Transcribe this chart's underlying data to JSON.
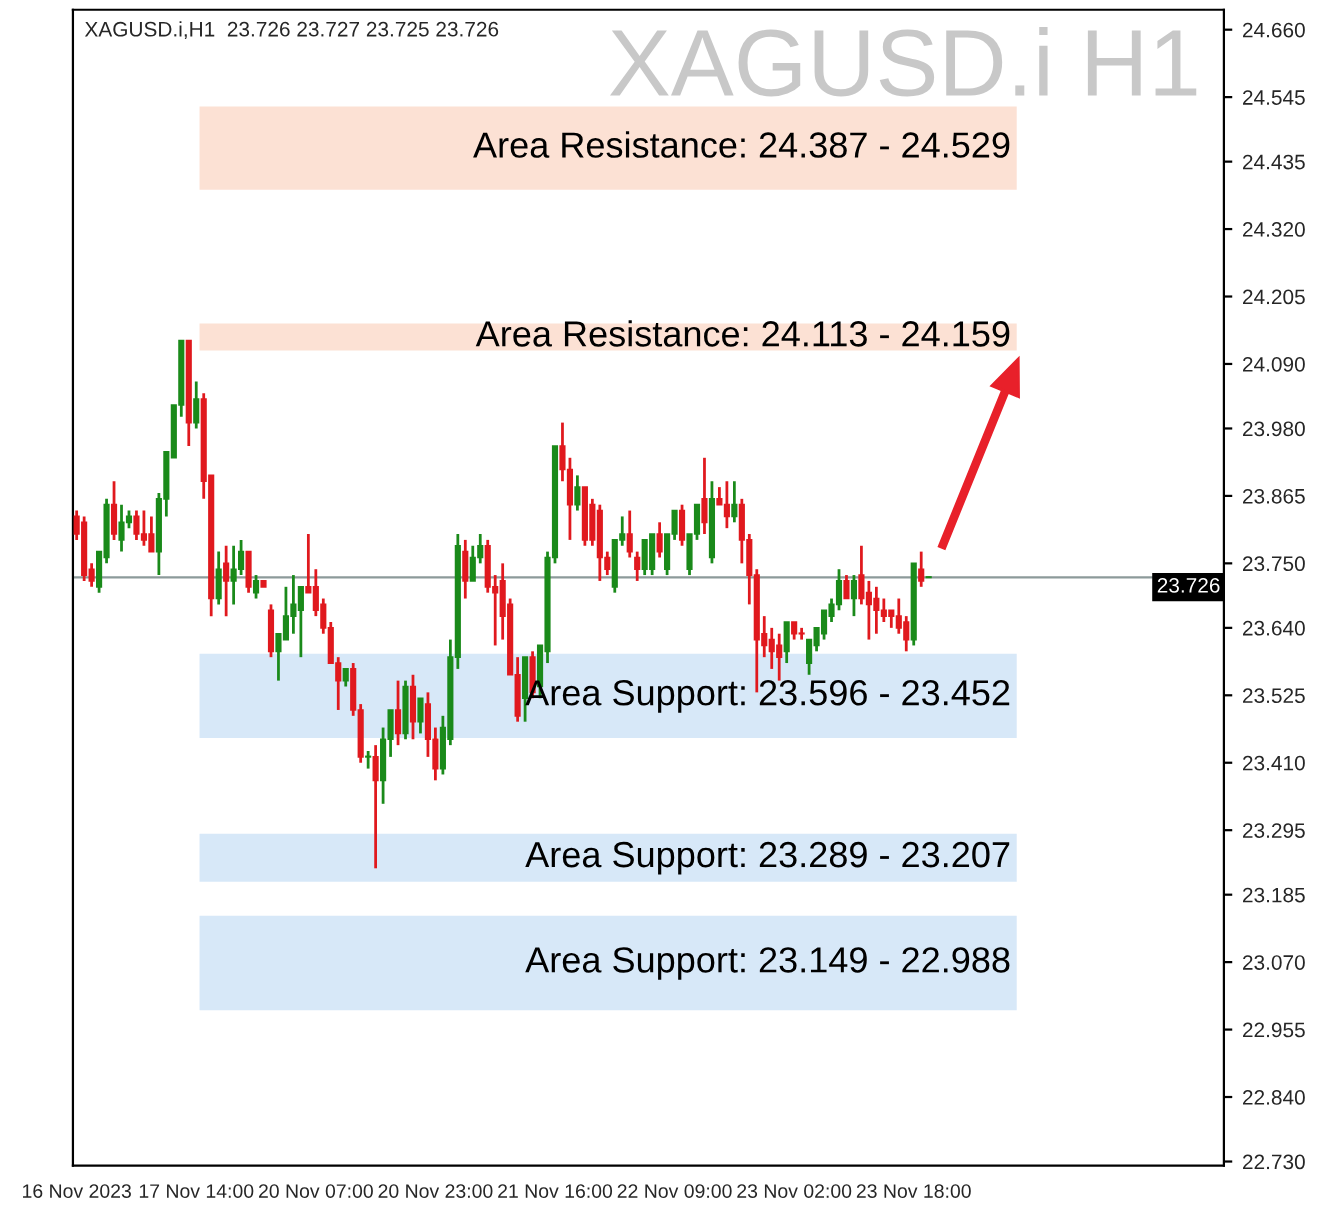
{
  "chart_data": {
    "type": "candlestick",
    "title": "XAGUSD.i H1",
    "annotations": [
      "XAGUSD.i,H1  23.726 23.727 23.725 23.726"
    ],
    "categories": [
      "16 Nov 2023",
      null,
      null,
      null,
      null,
      null,
      null,
      null,
      null,
      null,
      null,
      null,
      null,
      null,
      null,
      null,
      "17 Nov 14:00",
      null,
      null,
      null,
      null,
      null,
      null,
      null,
      null,
      null,
      null,
      null,
      null,
      null,
      null,
      null,
      "20 Nov 07:00",
      null,
      null,
      null,
      null,
      null,
      null,
      null,
      null,
      null,
      null,
      null,
      null,
      null,
      null,
      null,
      "20 Nov 23:00",
      null,
      null,
      null,
      null,
      null,
      null,
      null,
      null,
      null,
      null,
      null,
      null,
      null,
      null,
      null,
      "21 Nov 16:00",
      null,
      null,
      null,
      null,
      null,
      null,
      null,
      null,
      null,
      null,
      null,
      null,
      null,
      null,
      null,
      "22 Nov 09:00",
      null,
      null,
      null,
      null,
      null,
      null,
      null,
      null,
      null,
      null,
      null,
      null,
      null,
      null,
      null,
      "23 Nov 02:00",
      null,
      null,
      null,
      null,
      null,
      null,
      null,
      null,
      null,
      null,
      null,
      null,
      null,
      null,
      null,
      "23 Nov 18:00",
      null,
      null,
      null,
      null,
      null,
      null,
      null,
      null,
      null,
      null,
      null,
      null,
      null,
      null,
      null,
      null,
      null,
      null,
      null,
      null,
      null,
      null,
      null,
      null,
      null,
      null,
      null,
      null,
      null,
      null,
      null,
      null,
      null,
      null,
      null,
      null,
      null,
      null,
      null,
      null,
      null
    ],
    "ohlc": [
      [
        23.83,
        23.84,
        23.79,
        23.8
      ],
      [
        23.82,
        23.83,
        23.72,
        23.73
      ],
      [
        23.74,
        23.75,
        23.71,
        23.72
      ],
      [
        23.71,
        23.77,
        23.7,
        23.77
      ],
      [
        23.76,
        23.86,
        23.75,
        23.85
      ],
      [
        23.85,
        23.89,
        23.79,
        23.8
      ],
      [
        23.79,
        23.85,
        23.77,
        23.82
      ],
      [
        23.82,
        23.84,
        23.81,
        23.83
      ],
      [
        23.83,
        23.84,
        23.79,
        23.8
      ],
      [
        23.8,
        23.84,
        23.78,
        23.79
      ],
      [
        23.8,
        23.83,
        23.77,
        23.77
      ],
      [
        23.77,
        23.87,
        23.73,
        23.86
      ],
      [
        23.86,
        23.94,
        23.83,
        23.94
      ],
      [
        23.93,
        24.02,
        23.93,
        24.02
      ],
      [
        24.02,
        24.13,
        24.0,
        24.13
      ],
      [
        24.13,
        24.13,
        23.95,
        23.99
      ],
      [
        23.99,
        24.06,
        23.98,
        24.03
      ],
      [
        24.03,
        24.04,
        23.86,
        23.89
      ],
      [
        23.9,
        23.9,
        23.66,
        23.69
      ],
      [
        23.69,
        23.77,
        23.68,
        23.74
      ],
      [
        23.75,
        23.78,
        23.66,
        23.72
      ],
      [
        23.72,
        23.78,
        23.68,
        23.74
      ],
      [
        23.74,
        23.79,
        23.73,
        23.77
      ],
      [
        23.77,
        23.77,
        23.7,
        23.71
      ],
      [
        23.7,
        23.73,
        23.69,
        23.72
      ],
      [
        23.72,
        23.72,
        23.71,
        23.71
      ],
      [
        23.67,
        23.68,
        23.59,
        23.6
      ],
      [
        23.6,
        23.63,
        23.55,
        23.63
      ],
      [
        23.62,
        23.71,
        23.62,
        23.66
      ],
      [
        23.66,
        23.73,
        23.63,
        23.68
      ],
      [
        23.67,
        23.71,
        23.59,
        23.71
      ],
      [
        23.71,
        23.8,
        23.7,
        23.7
      ],
      [
        23.71,
        23.74,
        23.66,
        23.67
      ],
      [
        23.68,
        23.69,
        23.63,
        23.64
      ],
      [
        23.64,
        23.65,
        23.58,
        23.58
      ],
      [
        23.58,
        23.59,
        23.5,
        23.55
      ],
      [
        23.55,
        23.57,
        23.54,
        23.57
      ],
      [
        23.57,
        23.58,
        23.49,
        23.5
      ],
      [
        23.5,
        23.51,
        23.41,
        23.42
      ],
      [
        23.42,
        23.43,
        23.4,
        23.42
      ],
      [
        23.42,
        23.44,
        23.23,
        23.38
      ],
      [
        23.38,
        23.47,
        23.34,
        23.45
      ],
      [
        23.45,
        23.5,
        23.42,
        23.5
      ],
      [
        23.5,
        23.55,
        23.44,
        23.46
      ],
      [
        23.46,
        23.55,
        23.45,
        23.54
      ],
      [
        23.54,
        23.56,
        23.45,
        23.48
      ],
      [
        23.48,
        23.52,
        23.46,
        23.52
      ],
      [
        23.51,
        23.53,
        23.42,
        23.45
      ],
      [
        23.45,
        23.47,
        23.38,
        23.4
      ],
      [
        23.4,
        23.49,
        23.39,
        23.47
      ],
      [
        23.45,
        23.62,
        23.44,
        23.59
      ],
      [
        23.59,
        23.8,
        23.57,
        23.78
      ],
      [
        23.77,
        23.79,
        23.69,
        23.72
      ],
      [
        23.72,
        23.78,
        23.72,
        23.76
      ],
      [
        23.76,
        23.8,
        23.75,
        23.78
      ],
      [
        23.78,
        23.79,
        23.7,
        23.71
      ],
      [
        23.71,
        23.73,
        23.61,
        23.7
      ],
      [
        23.72,
        23.75,
        23.62,
        23.66
      ],
      [
        23.68,
        23.69,
        23.56,
        23.56
      ],
      [
        23.56,
        23.59,
        23.48,
        23.49
      ],
      [
        23.52,
        23.59,
        23.48,
        23.59
      ],
      [
        23.59,
        23.6,
        23.52,
        23.53
      ],
      [
        23.54,
        23.61,
        23.52,
        23.61
      ],
      [
        23.6,
        23.77,
        23.58,
        23.76
      ],
      [
        23.76,
        23.95,
        23.75,
        23.95
      ],
      [
        23.95,
        23.99,
        23.89,
        23.91
      ],
      [
        23.91,
        23.93,
        23.79,
        23.85
      ],
      [
        23.85,
        23.9,
        23.84,
        23.88
      ],
      [
        23.88,
        23.88,
        23.78,
        23.79
      ],
      [
        23.85,
        23.86,
        23.78,
        23.79
      ],
      [
        23.84,
        23.85,
        23.72,
        23.76
      ],
      [
        23.76,
        23.77,
        23.73,
        23.74
      ],
      [
        23.71,
        23.79,
        23.7,
        23.79
      ],
      [
        23.79,
        23.83,
        23.78,
        23.8
      ],
      [
        23.8,
        23.84,
        23.76,
        23.77
      ],
      [
        23.76,
        23.77,
        23.72,
        23.74
      ],
      [
        23.74,
        23.79,
        23.73,
        23.79
      ],
      [
        23.74,
        23.8,
        23.73,
        23.8
      ],
      [
        23.8,
        23.82,
        23.76,
        23.77
      ],
      [
        23.74,
        23.8,
        23.73,
        23.8
      ],
      [
        23.8,
        23.84,
        23.79,
        23.84
      ],
      [
        23.84,
        23.85,
        23.78,
        23.79
      ],
      [
        23.74,
        23.8,
        23.73,
        23.8
      ],
      [
        23.8,
        23.85,
        23.79,
        23.85
      ],
      [
        23.86,
        23.93,
        23.8,
        23.82
      ],
      [
        23.76,
        23.89,
        23.75,
        23.86
      ],
      [
        23.86,
        23.88,
        23.85,
        23.85
      ],
      [
        23.85,
        23.89,
        23.81,
        23.83
      ],
      [
        23.83,
        23.89,
        23.82,
        23.85
      ],
      [
        23.85,
        23.86,
        23.75,
        23.79
      ],
      [
        23.79,
        23.8,
        23.68,
        23.73
      ],
      [
        23.73,
        23.74,
        23.53,
        23.62
      ],
      [
        23.63,
        23.66,
        23.59,
        23.61
      ],
      [
        23.62,
        23.64,
        23.57,
        23.6
      ],
      [
        23.61,
        23.63,
        23.55,
        23.59
      ],
      [
        23.6,
        23.65,
        23.58,
        23.65
      ],
      [
        23.65,
        23.65,
        23.62,
        23.63
      ],
      [
        23.63,
        23.64,
        23.62,
        23.63
      ],
      [
        23.58,
        23.62,
        23.56,
        23.62
      ],
      [
        23.61,
        23.64,
        23.6,
        23.64
      ],
      [
        23.63,
        23.67,
        23.62,
        23.67
      ],
      [
        23.66,
        23.69,
        23.65,
        23.68
      ],
      [
        23.68,
        23.74,
        23.67,
        23.72
      ],
      [
        23.72,
        23.73,
        23.69,
        23.69
      ],
      [
        23.69,
        23.73,
        23.66,
        23.72
      ],
      [
        23.73,
        23.78,
        23.68,
        23.69
      ],
      [
        23.7,
        23.72,
        23.62,
        23.68
      ],
      [
        23.69,
        23.71,
        23.63,
        23.67
      ],
      [
        23.67,
        23.69,
        23.65,
        23.66
      ],
      [
        23.67,
        23.67,
        23.64,
        23.66
      ],
      [
        23.66,
        23.69,
        23.63,
        23.64
      ],
      [
        23.65,
        23.66,
        23.6,
        23.62
      ],
      [
        23.62,
        23.75,
        23.61,
        23.75
      ],
      [
        23.74,
        23.77,
        23.71,
        23.72
      ],
      [
        23.726,
        23.727,
        23.725,
        23.726
      ],
      null,
      null,
      null,
      null,
      null,
      null,
      null,
      null,
      null,
      null,
      null,
      null,
      null,
      null,
      null,
      null,
      null,
      null,
      null,
      null,
      null,
      null,
      null,
      null,
      null,
      null,
      null,
      null,
      null,
      null,
      null,
      null,
      null,
      null,
      null,
      null,
      null,
      null,
      null
    ],
    "colors": [
      "#e0191e",
      "#e0191e",
      "#e0191e",
      "#1a8a1a",
      "#1a8a1a",
      "#e0191e",
      "#1a8a1a",
      "#1a8a1a",
      "#e0191e",
      "#e0191e",
      "#e0191e",
      "#1a8a1a",
      "#1a8a1a",
      "#1a8a1a",
      "#1a8a1a",
      "#e0191e",
      "#1a8a1a",
      "#e0191e",
      "#e0191e",
      "#1a8a1a",
      "#e0191e",
      "#1a8a1a",
      "#1a8a1a",
      "#e0191e",
      "#1a8a1a",
      "#e0191e",
      "#e0191e",
      "#1a8a1a",
      "#1a8a1a",
      "#1a8a1a",
      "#1a8a1a",
      "#e0191e",
      "#e0191e",
      "#e0191e",
      "#e0191e",
      "#e0191e",
      "#1a8a1a",
      "#e0191e",
      "#e0191e",
      "#1a8a1a",
      "#e0191e",
      "#1a8a1a",
      "#1a8a1a",
      "#e0191e",
      "#1a8a1a",
      "#e0191e",
      "#1a8a1a",
      "#e0191e",
      "#e0191e",
      "#1a8a1a",
      "#1a8a1a",
      "#1a8a1a",
      "#e0191e",
      "#1a8a1a",
      "#1a8a1a",
      "#e0191e",
      "#e0191e",
      "#e0191e",
      "#e0191e",
      "#e0191e",
      "#1a8a1a",
      "#e0191e",
      "#1a8a1a",
      "#1a8a1a",
      "#1a8a1a",
      "#e0191e",
      "#e0191e",
      "#1a8a1a",
      "#e0191e",
      "#e0191e",
      "#e0191e",
      "#e0191e",
      "#1a8a1a",
      "#1a8a1a",
      "#e0191e",
      "#e0191e",
      "#1a8a1a",
      "#1a8a1a",
      "#e0191e",
      "#1a8a1a",
      "#1a8a1a",
      "#e0191e",
      "#1a8a1a",
      "#1a8a1a",
      "#e0191e",
      "#1a8a1a",
      "#e0191e",
      "#e0191e",
      "#1a8a1a",
      "#e0191e",
      "#e0191e",
      "#e0191e",
      "#e0191e",
      "#e0191e",
      "#e0191e",
      "#1a8a1a",
      "#e0191e",
      "#e0191e",
      "#1a8a1a",
      "#1a8a1a",
      "#1a8a1a",
      "#1a8a1a",
      "#1a8a1a",
      "#e0191e",
      "#1a8a1a",
      "#e0191e",
      "#e0191e",
      "#e0191e",
      "#e0191e",
      "#e0191e",
      "#e0191e",
      "#e0191e",
      "#1a8a1a",
      "#e0191e",
      "#1a8a1a",
      null,
      null,
      null,
      null,
      null,
      null,
      null,
      null,
      null,
      null,
      null,
      null,
      null,
      null,
      null,
      null,
      null,
      null,
      null,
      null,
      null,
      null,
      null,
      null,
      null,
      null,
      null,
      null,
      null,
      null,
      null,
      null,
      null,
      null,
      null,
      null,
      null,
      null,
      null
    ],
    "ylim": [
      22.723,
      24.694
    ],
    "yticks": [
      {
        "value": 24.66,
        "label": "24.660"
      },
      {
        "value": 24.545,
        "label": "24.545"
      },
      {
        "value": 24.435,
        "label": "24.435"
      },
      {
        "value": 24.32,
        "label": "24.320"
      },
      {
        "value": 24.205,
        "label": "24.205"
      },
      {
        "value": 24.09,
        "label": "24.090"
      },
      {
        "value": 23.98,
        "label": "23.980"
      },
      {
        "value": 23.865,
        "label": "23.865"
      },
      {
        "value": 23.75,
        "label": "23.750"
      },
      {
        "value": 23.64,
        "label": "23.640"
      },
      {
        "value": 23.525,
        "label": "23.525"
      },
      {
        "value": 23.41,
        "label": "23.410"
      },
      {
        "value": 23.295,
        "label": "23.295"
      },
      {
        "value": 23.185,
        "label": "23.185"
      },
      {
        "value": 23.07,
        "label": "23.070"
      },
      {
        "value": 22.955,
        "label": "22.955"
      },
      {
        "value": 22.84,
        "label": "22.840"
      },
      {
        "value": 22.73,
        "label": "22.730"
      }
    ],
    "ref_lines": [
      {
        "axis": "y",
        "value": 23.726,
        "label": "23.726",
        "color": "#8c9a9a"
      }
    ],
    "bands": [
      {
        "axis": "y",
        "from": 24.387,
        "to": 24.529,
        "label": "Area Resistance: 24.387 - 24.529",
        "color": "#fce1d4"
      },
      {
        "axis": "y",
        "from": 24.113,
        "to": 24.159,
        "label": "Area Resistance: 24.113 - 24.159",
        "color": "#fce1d4"
      },
      {
        "axis": "y",
        "from": 23.452,
        "to": 23.596,
        "label": "Area Support: 23.596 - 23.452",
        "color": "#d7e8f8"
      },
      {
        "axis": "y",
        "from": 23.207,
        "to": 23.289,
        "label": "Area Support: 23.289 - 23.207",
        "color": "#d7e8f8"
      },
      {
        "axis": "y",
        "from": 22.988,
        "to": 23.149,
        "label": "Area Support: 23.149 - 22.988",
        "color": "#d7e8f8"
      }
    ],
    "grid": false,
    "legend": false
  }
}
